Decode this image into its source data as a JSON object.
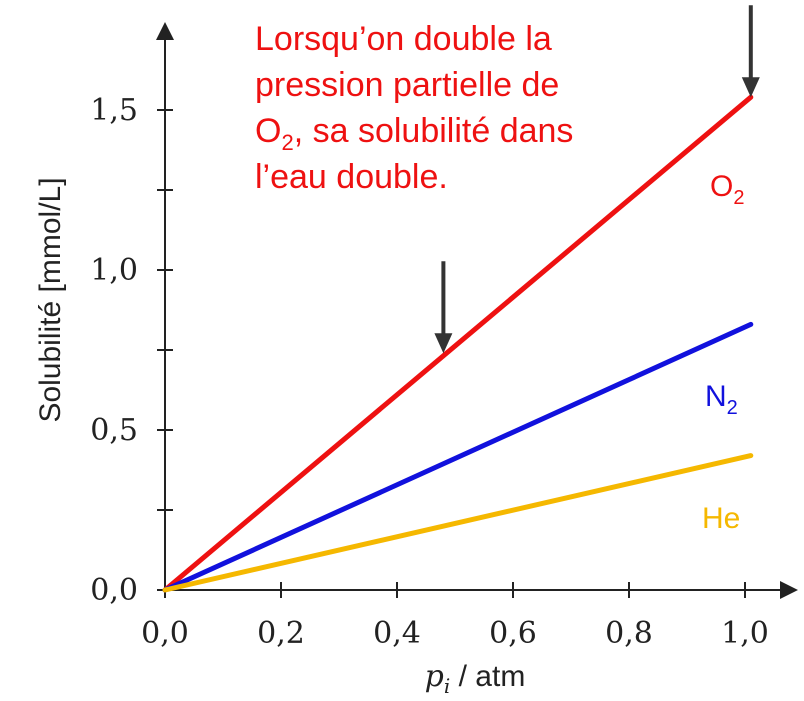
{
  "chart_data": {
    "type": "line",
    "xlabel_var": "p",
    "xlabel_sub": "i",
    "xlabel_unit": " / atm",
    "ylabel": "Solubilité  [mmol/L]",
    "xlim": [
      0,
      1.0
    ],
    "ylim": [
      0,
      1.5
    ],
    "x_ticks": [
      0.0,
      0.2,
      0.4,
      0.6,
      0.8,
      1.0
    ],
    "x_tick_labels": [
      "0,0",
      "0,2",
      "0,4",
      "0,6",
      "0,8",
      "1,0"
    ],
    "y_ticks": [
      0.0,
      0.5,
      1.0,
      1.5
    ],
    "y_tick_labels": [
      "0,0",
      "0,5",
      "1,0",
      "1,5"
    ],
    "y_minor_ticks": [
      0.25,
      0.75,
      1.25
    ],
    "series": [
      {
        "name": "O2",
        "label_main": "O",
        "label_sub": "2",
        "color": "#ee1111",
        "x": [
          0,
          1.01
        ],
        "y": [
          0,
          1.54
        ]
      },
      {
        "name": "N2",
        "label_main": "N",
        "label_sub": "2",
        "color": "#1111dd",
        "x": [
          0,
          1.01
        ],
        "y": [
          0,
          0.83
        ]
      },
      {
        "name": "He",
        "label_main": "He",
        "label_sub": "",
        "color": "#f5b800",
        "x": [
          0,
          1.01
        ],
        "y": [
          0,
          0.42
        ]
      }
    ],
    "annotation_lines": [
      {
        "parts": [
          {
            "t": "Lorsqu’on double la"
          }
        ]
      },
      {
        "parts": [
          {
            "t": "pression partielle de"
          }
        ]
      },
      {
        "parts": [
          {
            "t": "O"
          },
          {
            "t": "2",
            "sub": true
          },
          {
            "t": ", sa solubilité dans"
          }
        ]
      },
      {
        "parts": [
          {
            "t": "l’eau double."
          }
        ]
      }
    ],
    "arrows": [
      {
        "x": 0.48,
        "y": 0.74
      },
      {
        "x": 1.01,
        "y": 1.54
      }
    ]
  }
}
